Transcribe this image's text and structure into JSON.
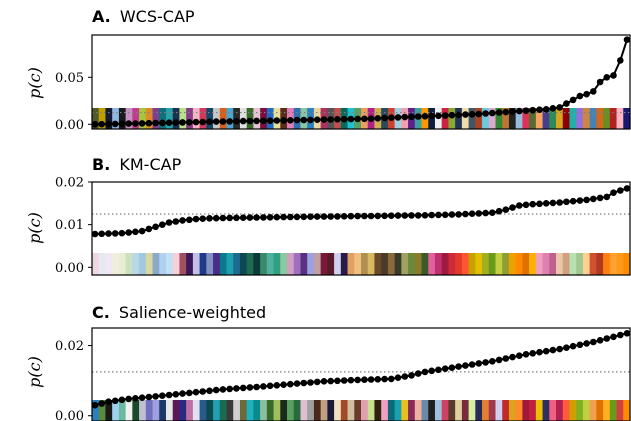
{
  "figure": {
    "ylabel": "p(c)",
    "colors": {
      "line": "#000000",
      "reference": "#7f7f7f",
      "axes": "#000000"
    }
  },
  "chart_data": [
    {
      "type": "line",
      "panel_letter": "A.",
      "title": "WCS-CAP",
      "ylabel": "p(c)",
      "n_points": 80,
      "y_range": [
        -0.005,
        0.095
      ],
      "yticks": [
        0.0,
        0.05
      ],
      "ytick_labels": [
        "0.00",
        "0.05"
      ],
      "reference_line": 0.0125,
      "series": [
        {
          "x": [
            1,
            8,
            20,
            28,
            35,
            42,
            45,
            48,
            52,
            55,
            58,
            60,
            62,
            64,
            66,
            68,
            70,
            72,
            73,
            74,
            75,
            76,
            77,
            78,
            79,
            80
          ],
          "values": [
            0.0,
            0.001,
            0.003,
            0.004,
            0.005,
            0.006,
            0.007,
            0.008,
            0.009,
            0.01,
            0.011,
            0.012,
            0.013,
            0.014,
            0.015,
            0.016,
            0.018,
            0.026,
            0.03,
            0.032,
            0.035,
            0.045,
            0.05,
            0.052,
            0.068,
            0.09
          ]
        }
      ],
      "color_swatches": [
        "#4f5a2a",
        "#c2a000",
        "#111b33",
        "#8fb7e0",
        "#1a1a1a",
        "#c890c0",
        "#bf3d8f",
        "#a5c83a",
        "#e08a2a",
        "#7d3f8f",
        "#10707a",
        "#2aa0a8",
        "#1c3050",
        "#b9e08a",
        "#8a3a8a",
        "#f2b5c5",
        "#d23a5a",
        "#14486a",
        "#c8c8c8",
        "#d95f1a",
        "#4aa8d0",
        "#2a2a2a",
        "#e0e0e0",
        "#3a6a2a",
        "#e6c3d2",
        "#7a1040",
        "#1f6cc7",
        "#e8e09a",
        "#5a2a1a",
        "#e07fb8",
        "#3070b0",
        "#8ac7a0",
        "#2a80c0",
        "#e8d8a0",
        "#b03060",
        "#555555",
        "#c05050",
        "#0a6a60",
        "#20c0d0",
        "#5aa060",
        "#e8a060",
        "#b0208a",
        "#d0b050",
        "#2a4a5a",
        "#d04030",
        "#a0d0e0",
        "#f2a0b0",
        "#60208a",
        "#3aa0a0",
        "#ff9900",
        "#101f40",
        "#f0f0f0",
        "#cc2244",
        "#88aa33",
        "#223355",
        "#eeddaa",
        "#445566",
        "#aa4422",
        "#66ccdd",
        "#ddaacc",
        "#338833",
        "#bb7733",
        "#222222",
        "#99bbdd",
        "#dd3355",
        "#556b2f",
        "#f4a460",
        "#483d8b",
        "#2e8b57",
        "#daa520",
        "#8b0000",
        "#20b2aa",
        "#9370db",
        "#cd853f",
        "#4682b4",
        "#d2691e",
        "#6b8e23",
        "#b22222",
        "#ffb6c1",
        "#191970"
      ]
    },
    {
      "type": "line",
      "panel_letter": "B.",
      "title": "KM-CAP",
      "ylabel": "p(c)",
      "n_points": 80,
      "y_range": [
        -0.0018,
        0.02
      ],
      "yticks": [
        0.0,
        0.01,
        0.02
      ],
      "ytick_labels": [
        "0.00",
        "0.01",
        "0.02"
      ],
      "reference_line": 0.0125,
      "series": [
        {
          "x": [
            1,
            5,
            8,
            10,
            12,
            14,
            16,
            18,
            22,
            30,
            40,
            50,
            55,
            60,
            62,
            64,
            66,
            70,
            74,
            77,
            78,
            79,
            80
          ],
          "values": [
            0.0078,
            0.008,
            0.0085,
            0.0095,
            0.0105,
            0.011,
            0.0113,
            0.0115,
            0.0116,
            0.0118,
            0.012,
            0.0122,
            0.0124,
            0.0128,
            0.0135,
            0.0145,
            0.0148,
            0.0152,
            0.0158,
            0.0165,
            0.0175,
            0.018,
            0.0185
          ]
        }
      ],
      "color_swatches": [
        "#eed8e0",
        "#e8e8f0",
        "#f0e8f4",
        "#f2eedd",
        "#e8ecd0",
        "#cbe0c0",
        "#b8d8e8",
        "#a0c8e0",
        "#d8d8a0",
        "#8aa8c8",
        "#b0d0f0",
        "#c0e0f8",
        "#f8d0d8",
        "#a05060",
        "#3a1a5a",
        "#c0c0e8",
        "#203a8a",
        "#8090c0",
        "#4a2a8a",
        "#0a7a8a",
        "#1aa0b0",
        "#1f6a90",
        "#0a4a50",
        "#206a50",
        "#0a3a3a",
        "#3a8a6a",
        "#50b0a0",
        "#30a080",
        "#8acaa0",
        "#d0a0c0",
        "#a070c0",
        "#5a3080",
        "#9aa0e0",
        "#c0a0a0",
        "#7a1a3a",
        "#5a1a2a",
        "#d0d0f0",
        "#2a1a4a",
        "#e0a060",
        "#f0c080",
        "#b09050",
        "#d8b860",
        "#6a4a2a",
        "#4a3a2a",
        "#8a6a3a",
        "#3a3a2a",
        "#a0a060",
        "#6a8a3a",
        "#8a7a2a",
        "#3a5a2a",
        "#e060a0",
        "#c03070",
        "#a01a40",
        "#d02a3a",
        "#e03a2a",
        "#ff5533",
        "#c8a000",
        "#e0c000",
        "#a0b020",
        "#6a9a1a",
        "#c0d040",
        "#90a030",
        "#f0a000",
        "#ff8a00",
        "#e07000",
        "#ffb000",
        "#f2a0c0",
        "#e080b0",
        "#c06090",
        "#e8c8a8",
        "#d0a080",
        "#b8e0b0",
        "#a0c890",
        "#ffd090",
        "#d05030",
        "#b03a20",
        "#ff7f0e",
        "#ffa030",
        "#ff9a1a",
        "#ff8c00"
      ]
    },
    {
      "type": "line",
      "panel_letter": "C.",
      "title": "Salience-weighted",
      "ylabel": "p(c)",
      "n_points": 80,
      "y_range": [
        -0.0015,
        0.025
      ],
      "yticks": [
        0.0,
        0.02
      ],
      "ytick_labels": [
        "0.00",
        "0.02"
      ],
      "reference_line": 0.0125,
      "series": [
        {
          "x": [
            1,
            3,
            6,
            10,
            15,
            20,
            25,
            30,
            35,
            40,
            45,
            48,
            50,
            55,
            60,
            65,
            70,
            75,
            78,
            80
          ],
          "values": [
            0.003,
            0.004,
            0.0048,
            0.0055,
            0.0065,
            0.0075,
            0.0082,
            0.009,
            0.0098,
            0.0102,
            0.0105,
            0.0115,
            0.0125,
            0.014,
            0.0155,
            0.0175,
            0.019,
            0.021,
            0.0225,
            0.0235
          ]
        }
      ],
      "color_swatches": [
        "#2a80c0",
        "#5a8a3a",
        "#1a1a1a",
        "#a0d0f0",
        "#6abaa0",
        "#f0f0f0",
        "#1a4a2a",
        "#c0c0d0",
        "#7070c0",
        "#a0a0e0",
        "#1a3a6a",
        "#e8e8e8",
        "#5a1a5a",
        "#2a2a80",
        "#c070a0",
        "#e0e0f0",
        "#2a5a8a",
        "#0a4a50",
        "#20a0b0",
        "#1a6a50",
        "#3a3a3a",
        "#d0d0d0",
        "#6a6a3a",
        "#20b0c0",
        "#0a8a8a",
        "#8ac0a0",
        "#3a6a2a",
        "#a0c060",
        "#1a2a1a",
        "#5aa060",
        "#2a6a40",
        "#e0c0d0",
        "#a0a0a0",
        "#4a2a1a",
        "#c0a080",
        "#1a1a3a",
        "#f0e0c0",
        "#a04a2a",
        "#d0c0a0",
        "#6a3a2a",
        "#e0a0b0",
        "#c8e090",
        "#302010",
        "#f0a0c0",
        "#0a6a7a",
        "#1aa0b0",
        "#e8c020",
        "#8a2a5a",
        "#f0b0a0",
        "#6a8aaa",
        "#202020",
        "#a0c0e0",
        "#d04060",
        "#5a3a2a",
        "#e0d0a0",
        "#7a2a3a",
        "#d0f0a0",
        "#2a2a5a",
        "#e08030",
        "#a03a4a",
        "#d0d0f0",
        "#c02a2a",
        "#e0a020",
        "#ff8a2a",
        "#a01a3a",
        "#c02040",
        "#e8c000",
        "#303060",
        "#f06080",
        "#b02050",
        "#ff5a3a",
        "#d0a000",
        "#80b020",
        "#c0d040",
        "#f0a050",
        "#e07000",
        "#ffb020",
        "#6a9a1a",
        "#d04040",
        "#ff8c00"
      ]
    }
  ]
}
